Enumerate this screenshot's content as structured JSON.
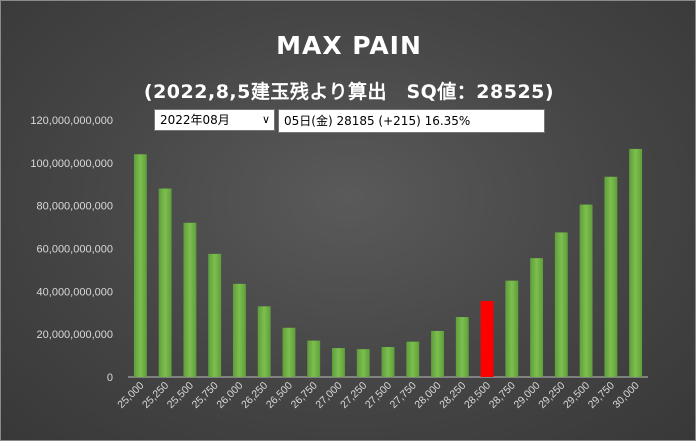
{
  "chart_data": {
    "type": "bar",
    "title": "MAX PAIN",
    "subtitle": "(2022,8,5建玉残より算出　SQ値：28525)",
    "categories": [
      "25,000",
      "25,250",
      "25,500",
      "25,750",
      "26,000",
      "26,250",
      "26,500",
      "26,750",
      "27,000",
      "27,250",
      "27,500",
      "27,750",
      "28,000",
      "28,250",
      "28,500",
      "28,750",
      "29,000",
      "29,250",
      "29,500",
      "29,750",
      "30,000"
    ],
    "values": [
      104000000000,
      88000000000,
      72000000000,
      57500000000,
      43500000000,
      33000000000,
      23000000000,
      17000000000,
      13500000000,
      13000000000,
      14000000000,
      16500000000,
      21500000000,
      28000000000,
      35500000000,
      45000000000,
      55500000000,
      67500000000,
      80500000000,
      93500000000,
      106500000000
    ],
    "highlight_category": "28,500",
    "ylim": [
      0,
      120000000000
    ],
    "yticks": [
      "0",
      "20,000,000,000",
      "40,000,000,000",
      "60,000,000,000",
      "80,000,000,000",
      "100,000,000,000",
      "120,000,000,000"
    ],
    "xlabel": "",
    "ylabel": "",
    "grid": false,
    "colors": {
      "bar": "#70ad47",
      "highlight": "#ff0000"
    }
  },
  "controls": {
    "month_select": {
      "value": "2022年08月"
    },
    "info_text": "05日(金) 28185 (+215) 16.35%"
  }
}
